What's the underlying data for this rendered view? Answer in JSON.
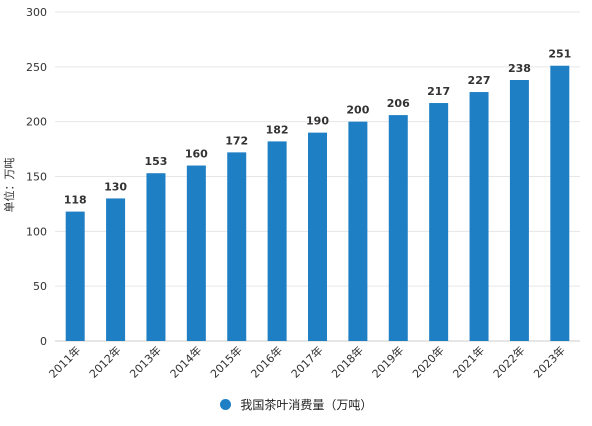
{
  "chart_data": {
    "type": "bar",
    "categories": [
      "2011年",
      "2012年",
      "2013年",
      "2014年",
      "2015年",
      "2016年",
      "2017年",
      "2018年",
      "2019年",
      "2020年",
      "2021年",
      "2022年",
      "2023年"
    ],
    "series": [
      {
        "name": "我国茶叶消费量（万吨）",
        "values": [
          118,
          130,
          153,
          160,
          172,
          182,
          190,
          200,
          206,
          217,
          227,
          238,
          251
        ]
      }
    ],
    "ylabel": "单位：万吨",
    "xlabel": "",
    "ylim": [
      0,
      300
    ],
    "yticks": [
      0,
      50,
      100,
      150,
      200,
      250,
      300
    ],
    "grid": true,
    "legend_position": "bottom-center",
    "colors": {
      "bar": "#1f7fc4",
      "grid": "#e6e6e6"
    }
  }
}
